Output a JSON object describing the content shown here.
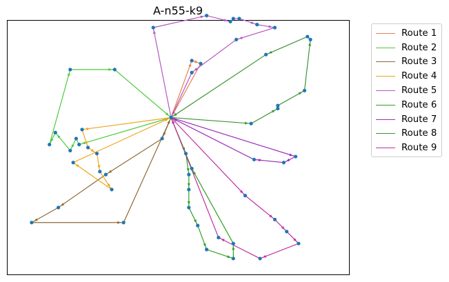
{
  "chart_data": {
    "type": "line",
    "title": "A-n55-k9",
    "xlabel": "",
    "ylabel": "",
    "grid": false,
    "legend_position": "outside-right",
    "depot": {
      "x": 50,
      "y": 50
    },
    "series": [
      {
        "name": "Route 1",
        "color": "#E8804F",
        "points": [
          [
            50,
            50
          ],
          [
            57,
            69
          ],
          [
            60,
            68
          ],
          [
            50,
            50
          ]
        ]
      },
      {
        "name": "Route 2",
        "color": "#4CCB3C",
        "points": [
          [
            50,
            50
          ],
          [
            19,
            41
          ],
          [
            18,
            43
          ],
          [
            16,
            39
          ],
          [
            11,
            45
          ],
          [
            9,
            41
          ],
          [
            16,
            66
          ],
          [
            31,
            66
          ],
          [
            50,
            50
          ]
        ]
      },
      {
        "name": "Route 3",
        "color": "#8B6A33",
        "points": [
          [
            50,
            50
          ],
          [
            47,
            43
          ],
          [
            28,
            31
          ],
          [
            12,
            20
          ],
          [
            3,
            15
          ],
          [
            34,
            15
          ],
          [
            50,
            50
          ]
        ]
      },
      {
        "name": "Route 4",
        "color": "#F0A31E",
        "points": [
          [
            50,
            50
          ],
          [
            20,
            46
          ],
          [
            22,
            40
          ],
          [
            25,
            38
          ],
          [
            26,
            32
          ],
          [
            30,
            26
          ],
          [
            17,
            35
          ],
          [
            50,
            50
          ]
        ]
      },
      {
        "name": "Route 5",
        "color": "#B556C1",
        "points": [
          [
            50,
            50
          ],
          [
            44,
            80
          ],
          [
            62,
            84
          ],
          [
            70,
            82
          ],
          [
            71,
            83
          ],
          [
            73,
            83
          ],
          [
            79,
            81
          ],
          [
            85,
            80
          ],
          [
            72,
            76
          ],
          [
            57,
            65
          ],
          [
            50,
            50
          ]
        ]
      },
      {
        "name": "Route 6",
        "color": "#2DA01E",
        "points": [
          [
            50,
            50
          ],
          [
            55,
            38
          ],
          [
            56,
            31
          ],
          [
            56,
            26
          ],
          [
            56,
            20
          ],
          [
            59,
            14
          ],
          [
            62,
            6
          ],
          [
            71,
            3
          ],
          [
            71,
            8
          ],
          [
            57,
            33
          ],
          [
            50,
            50
          ]
        ]
      },
      {
        "name": "Route 7",
        "color": "#9D2BB8",
        "points": [
          [
            50,
            50
          ],
          [
            92,
            37
          ],
          [
            88,
            35
          ],
          [
            78,
            36
          ],
          [
            50,
            50
          ]
        ]
      },
      {
        "name": "Route 8",
        "color": "#3C9235",
        "points": [
          [
            50,
            50
          ],
          [
            77,
            48
          ],
          [
            86,
            53
          ],
          [
            86,
            54
          ],
          [
            95,
            59
          ],
          [
            97,
            76
          ],
          [
            96,
            77
          ],
          [
            82,
            71
          ],
          [
            50,
            50
          ]
        ]
      },
      {
        "name": "Route 9",
        "color": "#C12E9F",
        "points": [
          [
            50,
            50
          ],
          [
            75,
            24
          ],
          [
            85,
            16
          ],
          [
            89,
            12
          ],
          [
            93,
            8
          ],
          [
            80,
            3
          ],
          [
            66,
            10
          ],
          [
            50,
            50
          ]
        ]
      }
    ]
  }
}
